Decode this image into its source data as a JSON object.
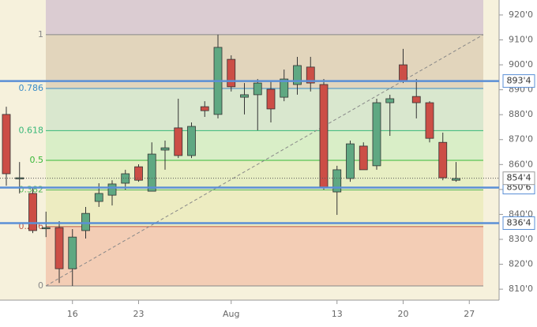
{
  "chart_data": {
    "type": "candlestick",
    "categories": [
      null,
      null,
      null,
      null,
      null,
      "16",
      null,
      null,
      null,
      null,
      "23",
      null,
      null,
      null,
      null,
      null,
      null,
      "Aug",
      null,
      null,
      null,
      null,
      null,
      null,
      null,
      "13",
      null,
      null,
      null,
      null,
      "20",
      null,
      null,
      null,
      null,
      "27"
    ],
    "open": [
      880.1,
      854.7,
      848.4,
      834.7,
      834.7,
      818.2,
      833.5,
      845.2,
      847.7,
      852.5,
      859.1,
      849.3,
      865.8,
      874.7,
      863.6,
      883.2,
      880.1,
      902.2,
      887.0,
      888.0,
      890.2,
      887.0,
      892.1,
      899.1,
      892.1,
      849.0,
      854.4,
      867.4,
      859.5,
      884.8,
      900.0,
      887.3,
      884.8,
      868.9,
      853.7,
      null
    ],
    "high": [
      883.2,
      861.0,
      850.6,
      841.1,
      837.3,
      834.1,
      843.0,
      852.5,
      853.7,
      857.9,
      860.1,
      868.9,
      869.6,
      886.4,
      876.9,
      885.4,
      912.1,
      903.8,
      892.7,
      894.3,
      893.4,
      898.1,
      903.2,
      903.2,
      894.3,
      859.5,
      869.6,
      868.9,
      886.4,
      888.0,
      906.4,
      894.3,
      885.4,
      872.8,
      861.0,
      null
    ],
    "low": [
      851.5,
      848.4,
      832.5,
      830.9,
      812.5,
      811.3,
      830.3,
      843.0,
      843.6,
      849.9,
      853.1,
      849.3,
      857.9,
      862.6,
      862.6,
      879.1,
      878.5,
      889.3,
      880.1,
      873.7,
      876.9,
      885.4,
      888.0,
      889.3,
      849.9,
      839.8,
      853.1,
      857.9,
      857.9,
      871.5,
      892.7,
      878.5,
      868.9,
      853.7,
      853.1,
      null
    ],
    "close": [
      856.3,
      854.7,
      833.5,
      834.7,
      818.2,
      830.9,
      840.4,
      848.4,
      852.2,
      856.3,
      853.7,
      864.2,
      866.7,
      863.6,
      875.3,
      881.6,
      907.0,
      891.2,
      888.0,
      892.7,
      882.3,
      894.3,
      899.7,
      892.7,
      850.6,
      857.9,
      868.3,
      857.9,
      884.8,
      886.4,
      893.4,
      884.8,
      870.5,
      854.7,
      854.4,
      null
    ],
    "up_color": "#5fa882",
    "down_color": "#cc4e46",
    "ylim": [
      805.6,
      926.0
    ],
    "yticks": [
      {
        "value": 810,
        "label": "810'0"
      },
      {
        "value": 820,
        "label": "820'0"
      },
      {
        "value": 830,
        "label": "830'0"
      },
      {
        "value": 840,
        "label": "840'0"
      },
      {
        "value": 850,
        "label": "850'0"
      },
      {
        "value": 860,
        "label": "860'0"
      },
      {
        "value": 870,
        "label": "870'0"
      },
      {
        "value": 880,
        "label": "880'0"
      },
      {
        "value": 890,
        "label": "890'0"
      },
      {
        "value": 900,
        "label": "900'0"
      },
      {
        "value": 910,
        "label": "910'0"
      },
      {
        "value": 920,
        "label": "920'0"
      }
    ],
    "fib": {
      "low": 811.3,
      "high": 912.1,
      "levels": [
        0,
        0.236,
        0.382,
        0.5,
        0.618,
        0.786,
        1
      ],
      "colors": [
        "#888888",
        "#c05a4a",
        "#58b858",
        "#38b838",
        "#38b878",
        "#3a8cc8",
        "#888888"
      ],
      "zones": [
        "#f3c9b0",
        "#ecebbe",
        "#e6edc0",
        "#d6edc4",
        "#d6e6cc",
        "#e0d2b8",
        "#d8c8d0"
      ]
    },
    "lines": [
      {
        "value": 893.5,
        "label": "893'4"
      },
      {
        "value": 850.75,
        "label": "850'6"
      },
      {
        "value": 836.5,
        "label": "836'4"
      }
    ],
    "last_price": {
      "value": 854.5,
      "label": "854'4"
    }
  }
}
